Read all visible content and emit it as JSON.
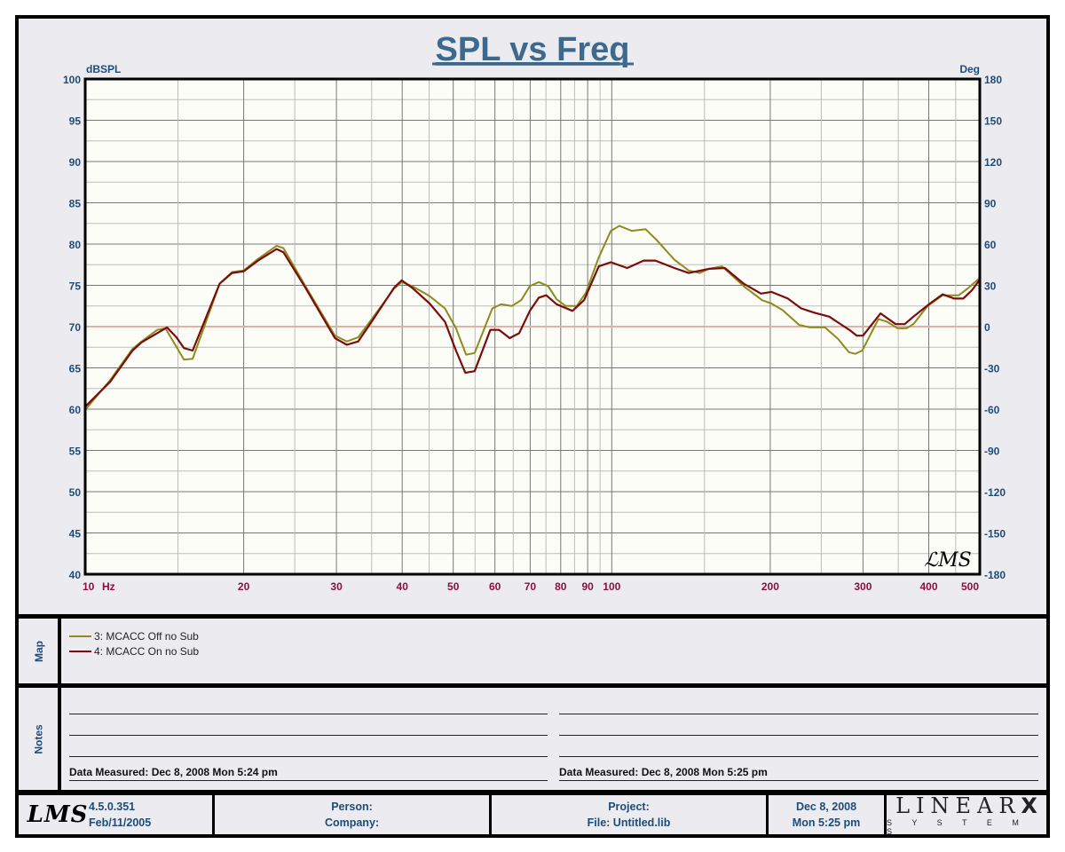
{
  "chart_data": {
    "type": "line",
    "title": "SPL vs Freq",
    "xlabel": "Hz",
    "ylabel": "dBSPL",
    "y2label": "Deg",
    "xscale": "log",
    "xlim": [
      10,
      500
    ],
    "ylim": [
      40,
      100
    ],
    "y2lim": [
      -180,
      180
    ],
    "x_tick_labels": [
      "10",
      "20",
      "30",
      "40",
      "50",
      "60",
      "70",
      "80",
      "90",
      "100",
      "200",
      "300",
      "400",
      "500"
    ],
    "y_tick_labels": [
      "100",
      "95",
      "90",
      "85",
      "80",
      "75",
      "70",
      "65",
      "60",
      "55",
      "50",
      "45",
      "40"
    ],
    "y2_tick_labels": [
      "180",
      "150",
      "120",
      "90",
      "60",
      "30",
      "0",
      "-30",
      "-60",
      "-90",
      "-120",
      "-150",
      "-180"
    ],
    "reference_line_db": 70,
    "grid": true,
    "watermark": "LMS",
    "series": [
      {
        "name": "3: MCACC Off no Sub",
        "color": "#8c8c1c",
        "x": [
          10,
          11.15,
          12.3,
          12.8,
          13.7,
          14.2,
          15.4,
          16.0,
          18.0,
          19.0,
          20.0,
          21.3,
          23.1,
          23.8,
          26.2,
          29.8,
          31.4,
          33.0,
          35.0,
          38.6,
          39.9,
          41.8,
          45.1,
          48.2,
          50.6,
          52.9,
          54.9,
          59.3,
          61.6,
          64.6,
          67.3,
          69.9,
          72.7,
          75.7,
          78.6,
          81.8,
          85.8,
          89.3,
          94.5,
          99.6,
          103.4,
          109.1,
          116,
          121.7,
          131.5,
          140,
          147,
          153,
          162,
          178,
          193,
          201,
          211,
          227,
          238,
          254,
          269,
          282,
          290,
          299,
          321,
          333,
          349,
          363,
          374,
          398,
          425,
          456,
          474,
          500
        ],
        "y": [
          59.9,
          63.5,
          67.3,
          68.2,
          69.6,
          69.8,
          66.0,
          66.1,
          75.2,
          76.6,
          76.8,
          78.2,
          79.8,
          79.5,
          74.9,
          68.9,
          68.2,
          68.7,
          70.9,
          74.6,
          75.4,
          74.9,
          73.7,
          72.2,
          69.8,
          66.6,
          66.8,
          72.2,
          72.7,
          72.5,
          73.2,
          74.9,
          75.4,
          74.9,
          73.3,
          72.5,
          72.5,
          74.1,
          78.4,
          81.6,
          82.2,
          81.6,
          81.8,
          80.5,
          78.1,
          76.8,
          76.5,
          77.0,
          77.3,
          74.9,
          73.2,
          72.8,
          72.0,
          70.2,
          69.9,
          69.9,
          68.5,
          66.9,
          66.7,
          67.1,
          70.9,
          70.6,
          69.8,
          69.8,
          70.3,
          72.5,
          73.8,
          73.8,
          74.6,
          75.9
        ]
      },
      {
        "name": "4: MCACC On no Sub",
        "color": "#7a0c0c",
        "x": [
          10,
          11.15,
          12.3,
          12.8,
          13.7,
          14.3,
          14.9,
          15.4,
          16.0,
          18.0,
          19.0,
          20.0,
          21.3,
          23.1,
          23.8,
          26.2,
          29.8,
          31.4,
          33.0,
          35.0,
          38.6,
          39.9,
          41.8,
          45.1,
          48.2,
          50.6,
          52.7,
          54.9,
          58.8,
          61.1,
          64.0,
          66.7,
          69.9,
          72.7,
          75.1,
          78.6,
          84.2,
          88.6,
          94.5,
          99.6,
          107,
          115,
          121,
          131.5,
          140,
          153,
          164,
          178,
          192,
          201,
          216,
          229,
          242,
          259,
          269,
          284,
          292,
          300,
          324,
          346,
          360,
          374,
          402,
          425,
          447,
          465,
          483,
          500
        ],
        "y": [
          60.3,
          63.3,
          67.1,
          68.1,
          69.2,
          69.9,
          68.7,
          67.4,
          67.1,
          75.2,
          76.5,
          76.7,
          78.0,
          79.4,
          79.0,
          74.7,
          68.6,
          67.8,
          68.2,
          70.6,
          74.7,
          75.6,
          74.7,
          72.8,
          70.6,
          67.1,
          64.4,
          64.6,
          69.6,
          69.6,
          68.6,
          69.2,
          71.9,
          73.5,
          73.8,
          72.7,
          71.9,
          73.2,
          77.3,
          77.8,
          77.1,
          78.0,
          78.0,
          77.1,
          76.5,
          77.0,
          77.1,
          75.2,
          74.0,
          74.2,
          73.4,
          72.2,
          71.7,
          71.2,
          70.5,
          69.5,
          68.9,
          68.9,
          71.6,
          70.3,
          70.3,
          71.2,
          72.8,
          73.9,
          73.4,
          73.4,
          74.4,
          75.7
        ]
      }
    ]
  },
  "map": {
    "label": "Map"
  },
  "notes": {
    "label": "Notes",
    "measured_left": "Data Measured: Dec  8, 2008  Mon  5:24 pm",
    "measured_right": "Data Measured: Dec  8, 2008  Mon  5:25 pm"
  },
  "footer": {
    "logo": "LMS",
    "version": "4.5.0.351",
    "version_date": "Feb/11/2005",
    "person": "Person:",
    "company": "Company:",
    "project": "Project:",
    "file": "File: Untitled.lib",
    "date": "Dec  8, 2008",
    "time": "Mon  5:25 pm",
    "brand": "LINEAR",
    "brand_x": "X",
    "brand_sub": "S Y S T E M S"
  }
}
